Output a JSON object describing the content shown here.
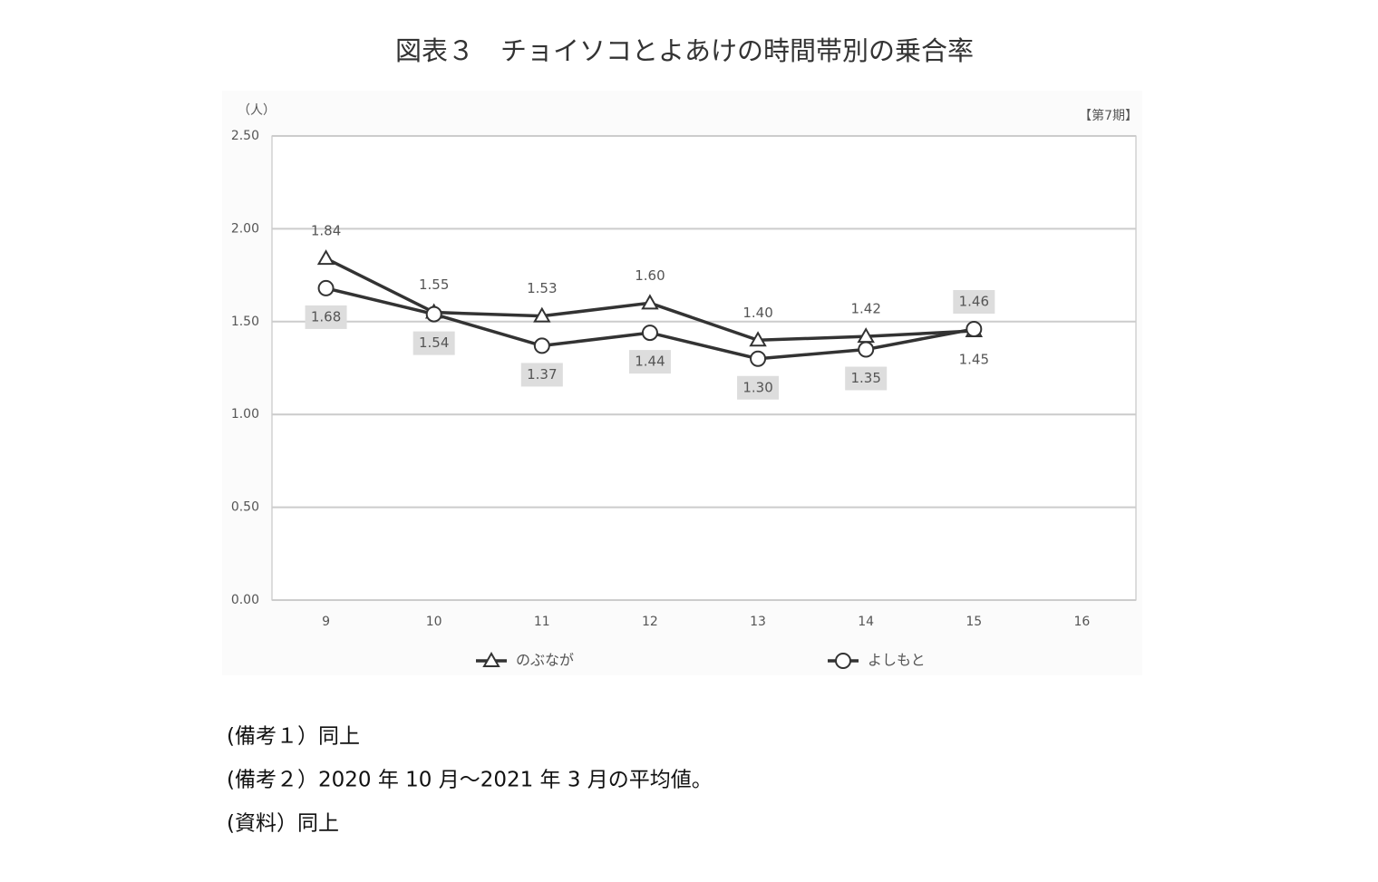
{
  "chart_data": {
    "type": "line",
    "title": "図表３　チョイソコとよあけの時間帯別の乗合率",
    "y_label": "（人）",
    "corner_label": "【第7期】",
    "categories": [
      "9",
      "10",
      "11",
      "12",
      "13",
      "14",
      "15",
      "16"
    ],
    "series": [
      {
        "name": "のぶなが",
        "color": "#333333",
        "marker": "triangle",
        "values": [
          1.84,
          1.55,
          1.53,
          1.6,
          1.4,
          1.42,
          1.45,
          null
        ],
        "value_labels": [
          "1.84",
          "1.55",
          "1.53",
          "1.60",
          "1.40",
          "1.42",
          "1.45",
          null
        ]
      },
      {
        "name": "よしもと",
        "color": "#333333",
        "marker": "circle",
        "values": [
          1.68,
          1.54,
          1.37,
          1.44,
          1.3,
          1.35,
          1.46,
          null
        ],
        "value_labels": [
          "1.68",
          "1.54",
          "1.37",
          "1.44",
          "1.30",
          "1.35",
          "1.46",
          null
        ]
      }
    ],
    "ylim": [
      0,
      2.5
    ],
    "yticks": [
      {
        "value": 0,
        "label": "0.00"
      },
      {
        "value": 0.5,
        "label": "0.50"
      },
      {
        "value": 1,
        "label": "1.00"
      },
      {
        "value": 1.5,
        "label": "1.50"
      },
      {
        "value": 2,
        "label": "2.00"
      },
      {
        "value": 2.5,
        "label": "2.50"
      }
    ],
    "grid": true,
    "legend": "bottom",
    "notes": [
      "(備考１）同上",
      "(備考２）2020 年 10 月～2021 年 3 月の平均値。",
      "(資料）同上"
    ]
  }
}
